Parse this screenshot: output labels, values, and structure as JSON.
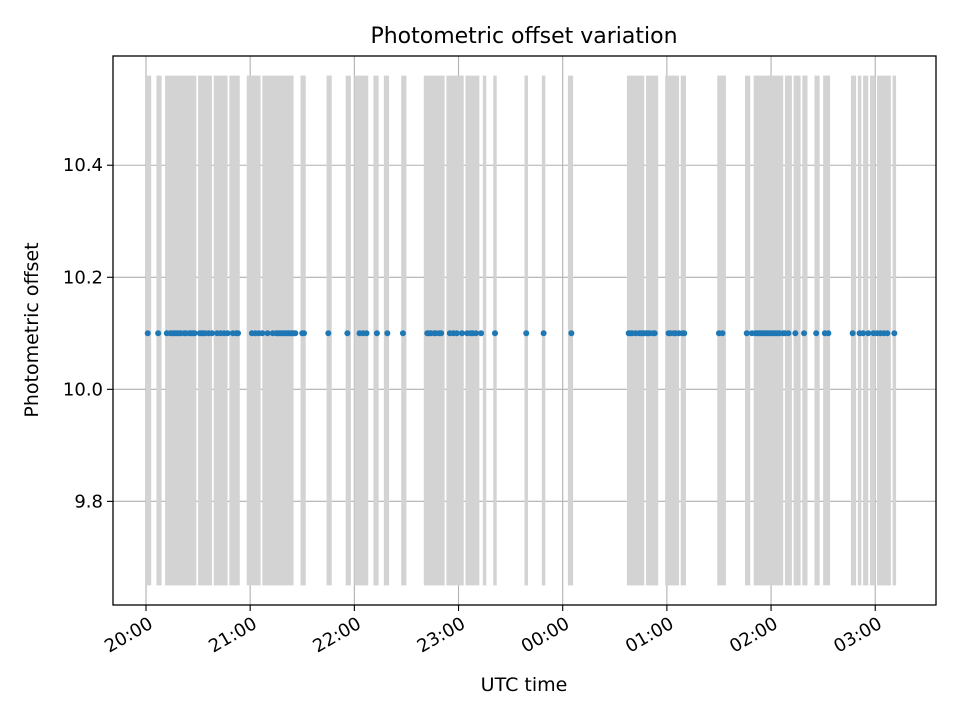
{
  "chart_data": {
    "type": "scatter",
    "title": "Photometric offset variation",
    "xlabel": "UTC time",
    "ylabel": "Photometric offset",
    "x_axis": {
      "type": "time",
      "range": [
        "19:41",
        "03:35"
      ],
      "ticks": [
        {
          "time": "20:00",
          "label": "20:00"
        },
        {
          "time": "21:00",
          "label": "21:00"
        },
        {
          "time": "22:00",
          "label": "22:00"
        },
        {
          "time": "23:00",
          "label": "23:00"
        },
        {
          "time": "00:00",
          "label": "00:00"
        },
        {
          "time": "01:00",
          "label": "01:00"
        },
        {
          "time": "02:00",
          "label": "02:00"
        },
        {
          "time": "03:00",
          "label": "03:00"
        }
      ],
      "tick_label_rotation": 30
    },
    "y_axis": {
      "range": [
        9.615,
        10.595
      ],
      "ticks": [
        {
          "value": 9.8,
          "label": "9.8"
        },
        {
          "value": 10.0,
          "label": "10.0"
        },
        {
          "value": 10.2,
          "label": "10.2"
        },
        {
          "value": 10.4,
          "label": "10.4"
        }
      ]
    },
    "grid": true,
    "colors": {
      "points": "#1f77b4",
      "exposure_bands": "#d3d3d3",
      "grid": "#b0b0b0"
    },
    "exposure_band_y_range": [
      9.65,
      10.56
    ],
    "series": [
      {
        "offset_value": 10.1,
        "times": [
          "20:01",
          "20:07",
          "20:12",
          "20:14",
          "20:15",
          "20:16",
          "20:17",
          "20:18",
          "20:19",
          "20:20",
          "20:22",
          "20:23",
          "20:25",
          "20:26",
          "20:27",
          "20:28",
          "20:31",
          "20:32",
          "20:33",
          "20:34",
          "20:36",
          "20:38",
          "20:41",
          "20:43",
          "20:45",
          "20:47",
          "20:50",
          "20:52",
          "20:53",
          "21:01",
          "21:03",
          "21:05",
          "21:07",
          "21:10",
          "21:13",
          "21:15",
          "21:16",
          "21:17",
          "21:18",
          "21:19",
          "21:20",
          "21:21",
          "21:22",
          "21:23",
          "21:24",
          "21:25",
          "21:26",
          "21:30",
          "21:31",
          "21:45",
          "21:56",
          "22:03",
          "22:05",
          "22:07",
          "22:13",
          "22:19",
          "22:28",
          "22:42",
          "22:43",
          "22:44",
          "22:46",
          "22:47",
          "22:49",
          "22:50",
          "22:55",
          "22:57",
          "22:59",
          "23:02",
          "23:05",
          "23:07",
          "23:08",
          "23:10",
          "23:13",
          "23:21",
          "23:39",
          "23:49",
          "24:05",
          "24:38",
          "24:39",
          "24:40",
          "24:42",
          "24:44",
          "24:45",
          "24:46",
          "24:47",
          "24:48",
          "24:49",
          "24:50",
          "24:52",
          "24:53",
          "25:01",
          "25:02",
          "25:04",
          "25:05",
          "25:07",
          "25:09",
          "25:10",
          "25:30",
          "25:32",
          "25:46",
          "25:49",
          "25:51",
          "25:52",
          "25:53",
          "25:54",
          "25:55",
          "25:56",
          "25:57",
          "25:58",
          "25:59",
          "26:00",
          "26:01",
          "26:02",
          "26:03",
          "26:04",
          "26:05",
          "26:07",
          "26:08",
          "26:10",
          "26:14",
          "26:19",
          "26:26",
          "26:31",
          "26:33",
          "26:47",
          "26:51",
          "26:53",
          "26:56",
          "26:59",
          "27:01",
          "27:03",
          "27:05",
          "27:07",
          "27:11"
        ]
      }
    ],
    "exposure_intervals": [
      [
        "20:00",
        "20:03"
      ],
      [
        "20:06",
        "20:09"
      ],
      [
        "20:11",
        "20:29"
      ],
      [
        "20:30",
        "20:38"
      ],
      [
        "20:39",
        "20:47"
      ],
      [
        "20:48",
        "20:54"
      ],
      [
        "20:58",
        "21:06"
      ],
      [
        "21:07",
        "21:25"
      ],
      [
        "21:29",
        "21:32"
      ],
      [
        "21:44",
        "21:47"
      ],
      [
        "21:55",
        "21:58"
      ],
      [
        "22:00",
        "22:08"
      ],
      [
        "22:11",
        "22:14"
      ],
      [
        "22:17",
        "22:20"
      ],
      [
        "22:27",
        "22:30"
      ],
      [
        "22:40",
        "22:52"
      ],
      [
        "22:53",
        "23:03"
      ],
      [
        "23:04",
        "23:12"
      ],
      [
        "23:14",
        "23:16"
      ],
      [
        "23:20",
        "23:22"
      ],
      [
        "23:38",
        "23:40"
      ],
      [
        "23:48",
        "23:50"
      ],
      [
        "24:03",
        "24:06"
      ],
      [
        "24:37",
        "24:47"
      ],
      [
        "24:48",
        "24:55"
      ],
      [
        "24:59",
        "25:07"
      ],
      [
        "25:08",
        "25:11"
      ],
      [
        "25:29",
        "25:34"
      ],
      [
        "25:45",
        "25:48"
      ],
      [
        "25:50",
        "26:07"
      ],
      [
        "26:08",
        "26:12"
      ],
      [
        "26:13",
        "26:17"
      ],
      [
        "26:18",
        "26:21"
      ],
      [
        "26:25",
        "26:28"
      ],
      [
        "26:30",
        "26:34"
      ],
      [
        "26:46",
        "26:49"
      ],
      [
        "26:50",
        "26:52"
      ],
      [
        "26:53",
        "26:56"
      ],
      [
        "26:57",
        "27:00"
      ],
      [
        "27:01",
        "27:09"
      ],
      [
        "27:10",
        "27:12"
      ]
    ]
  }
}
